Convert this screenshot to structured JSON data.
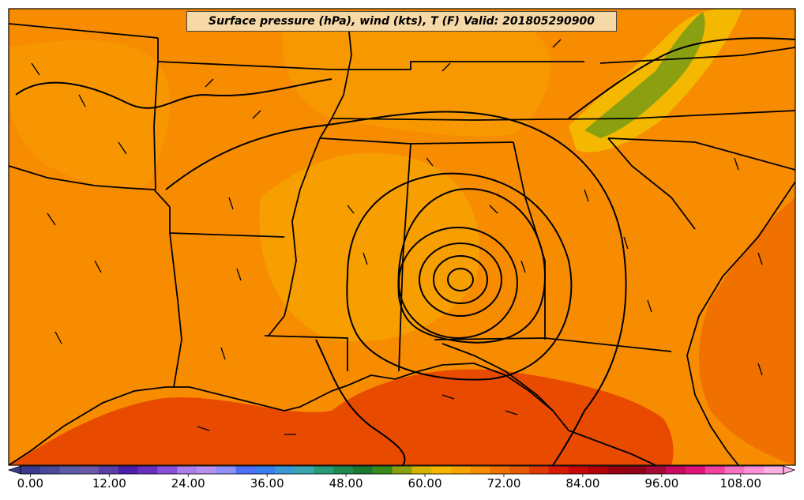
{
  "title": "Surface pressure (hPa), wind (kts), T (F) Valid: 201805290900",
  "colorbar": {
    "min": 0,
    "max": 116,
    "step": 4,
    "extend": "both",
    "tick_labels": [
      "0.00",
      "12.00",
      "24.00",
      "36.00",
      "48.00",
      "60.00",
      "72.00",
      "84.00",
      "96.00",
      "108.00"
    ],
    "tick_values": [
      0,
      12,
      24,
      36,
      48,
      60,
      72,
      84,
      96,
      108
    ],
    "colors": [
      "#3b3b8f",
      "#4a4a9a",
      "#5b5ba6",
      "#6a5aa8",
      "#5a3fa8",
      "#4b1fa8",
      "#6a2fc0",
      "#8a4fd8",
      "#aa7fe8",
      "#b98ff0",
      "#8f8ff8",
      "#4f6ff8",
      "#3a7ff0",
      "#3a9ad8",
      "#3aa8b0",
      "#2a9a78",
      "#1f8a50",
      "#1a7a30",
      "#3a8a1a",
      "#8aa010",
      "#d4b400",
      "#f5b800",
      "#f7a400",
      "#f78c00",
      "#f07000",
      "#e85a00",
      "#e03a00",
      "#d81a00",
      "#c80808",
      "#b00008",
      "#980010",
      "#900018",
      "#a80838",
      "#c80a60",
      "#e0147c",
      "#f040a0",
      "#f870c0",
      "#ff90d8",
      "#ffb0e0"
    ]
  },
  "temperature_colors": {
    "base": "#f78c00",
    "warm_gulf": "#e84a00",
    "cool_ridge": "#f5b800",
    "mountain": "#8aa010",
    "pocket": "#f7a400"
  },
  "feature": "closed surface low over central Alabama"
}
